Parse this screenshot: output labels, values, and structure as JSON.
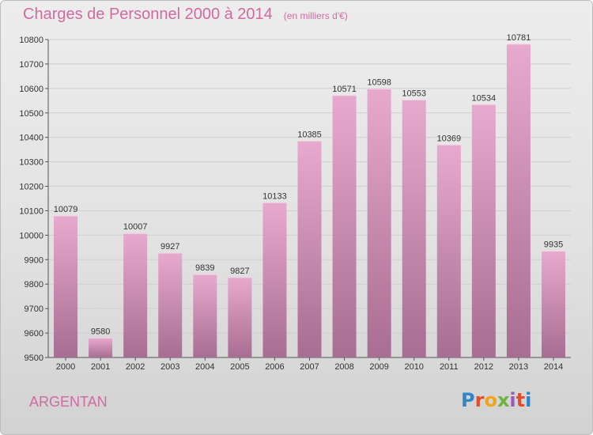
{
  "chart_data": {
    "type": "bar",
    "title": "Charges de Personnel 2000 à 2014",
    "subtitle": "(en milliers d'€)",
    "categories": [
      "2000",
      "2001",
      "2002",
      "2003",
      "2004",
      "2005",
      "2006",
      "2007",
      "2008",
      "2009",
      "2010",
      "2011",
      "2012",
      "2013",
      "2014"
    ],
    "values": [
      10079,
      9580,
      10007,
      9927,
      9839,
      9827,
      10133,
      10385,
      10571,
      10598,
      10553,
      10369,
      10534,
      10781,
      9935
    ],
    "ylim": [
      9500,
      10800
    ],
    "yticks": [
      9500,
      9600,
      9700,
      9800,
      9900,
      10000,
      10100,
      10200,
      10300,
      10400,
      10500,
      10600,
      10700,
      10800
    ],
    "grid": true,
    "legend": "none",
    "bar_color_top": "#e8a9ce",
    "bar_color_bottom": "#a86d92"
  },
  "footer": {
    "city": "ARGENTAN",
    "logo_letters": [
      "P",
      "r",
      "o",
      "x",
      "i",
      "t",
      "i"
    ]
  }
}
